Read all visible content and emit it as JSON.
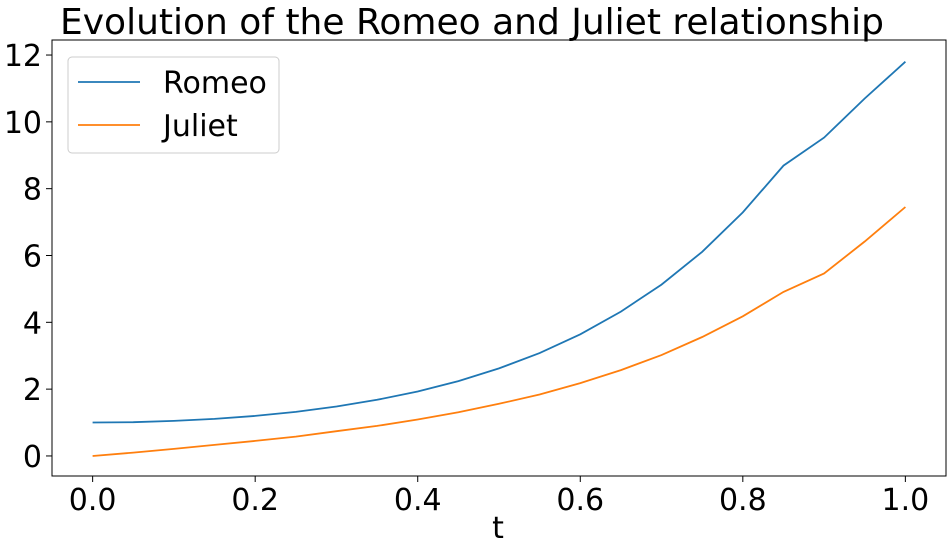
{
  "chart_data": {
    "type": "line",
    "title": "Evolution of the Romeo and Juliet relationship",
    "xlabel": "t",
    "ylabel": "",
    "xlim": [
      -0.05,
      1.05
    ],
    "ylim": [
      -0.6,
      12.45
    ],
    "x_ticks": [
      "0.0",
      "0.2",
      "0.4",
      "0.6",
      "0.8",
      "1.0"
    ],
    "y_ticks": [
      "0",
      "2",
      "4",
      "6",
      "8",
      "10",
      "12"
    ],
    "x": [
      0.0,
      0.05,
      0.1,
      0.15,
      0.2,
      0.25,
      0.3,
      0.35,
      0.4,
      0.45,
      0.5,
      0.55,
      0.6,
      0.65,
      0.7,
      0.75,
      0.8,
      0.85,
      0.9,
      0.95,
      1.0
    ],
    "series": [
      {
        "name": "Romeo",
        "color": "#1f77b4",
        "values": [
          1.0,
          1.01,
          1.05,
          1.11,
          1.2,
          1.32,
          1.48,
          1.68,
          1.93,
          2.24,
          2.62,
          3.08,
          3.64,
          4.32,
          5.13,
          6.11,
          7.29,
          8.69,
          9.53,
          10.7,
          11.8
        ]
      },
      {
        "name": "Juliet",
        "color": "#ff7f0e",
        "values": [
          0.0,
          0.1,
          0.21,
          0.33,
          0.45,
          0.58,
          0.74,
          0.9,
          1.09,
          1.31,
          1.56,
          1.84,
          2.18,
          2.57,
          3.02,
          3.56,
          4.18,
          4.91,
          5.46,
          6.42,
          7.45
        ]
      }
    ],
    "grid": false,
    "legend_position": "top-left"
  }
}
